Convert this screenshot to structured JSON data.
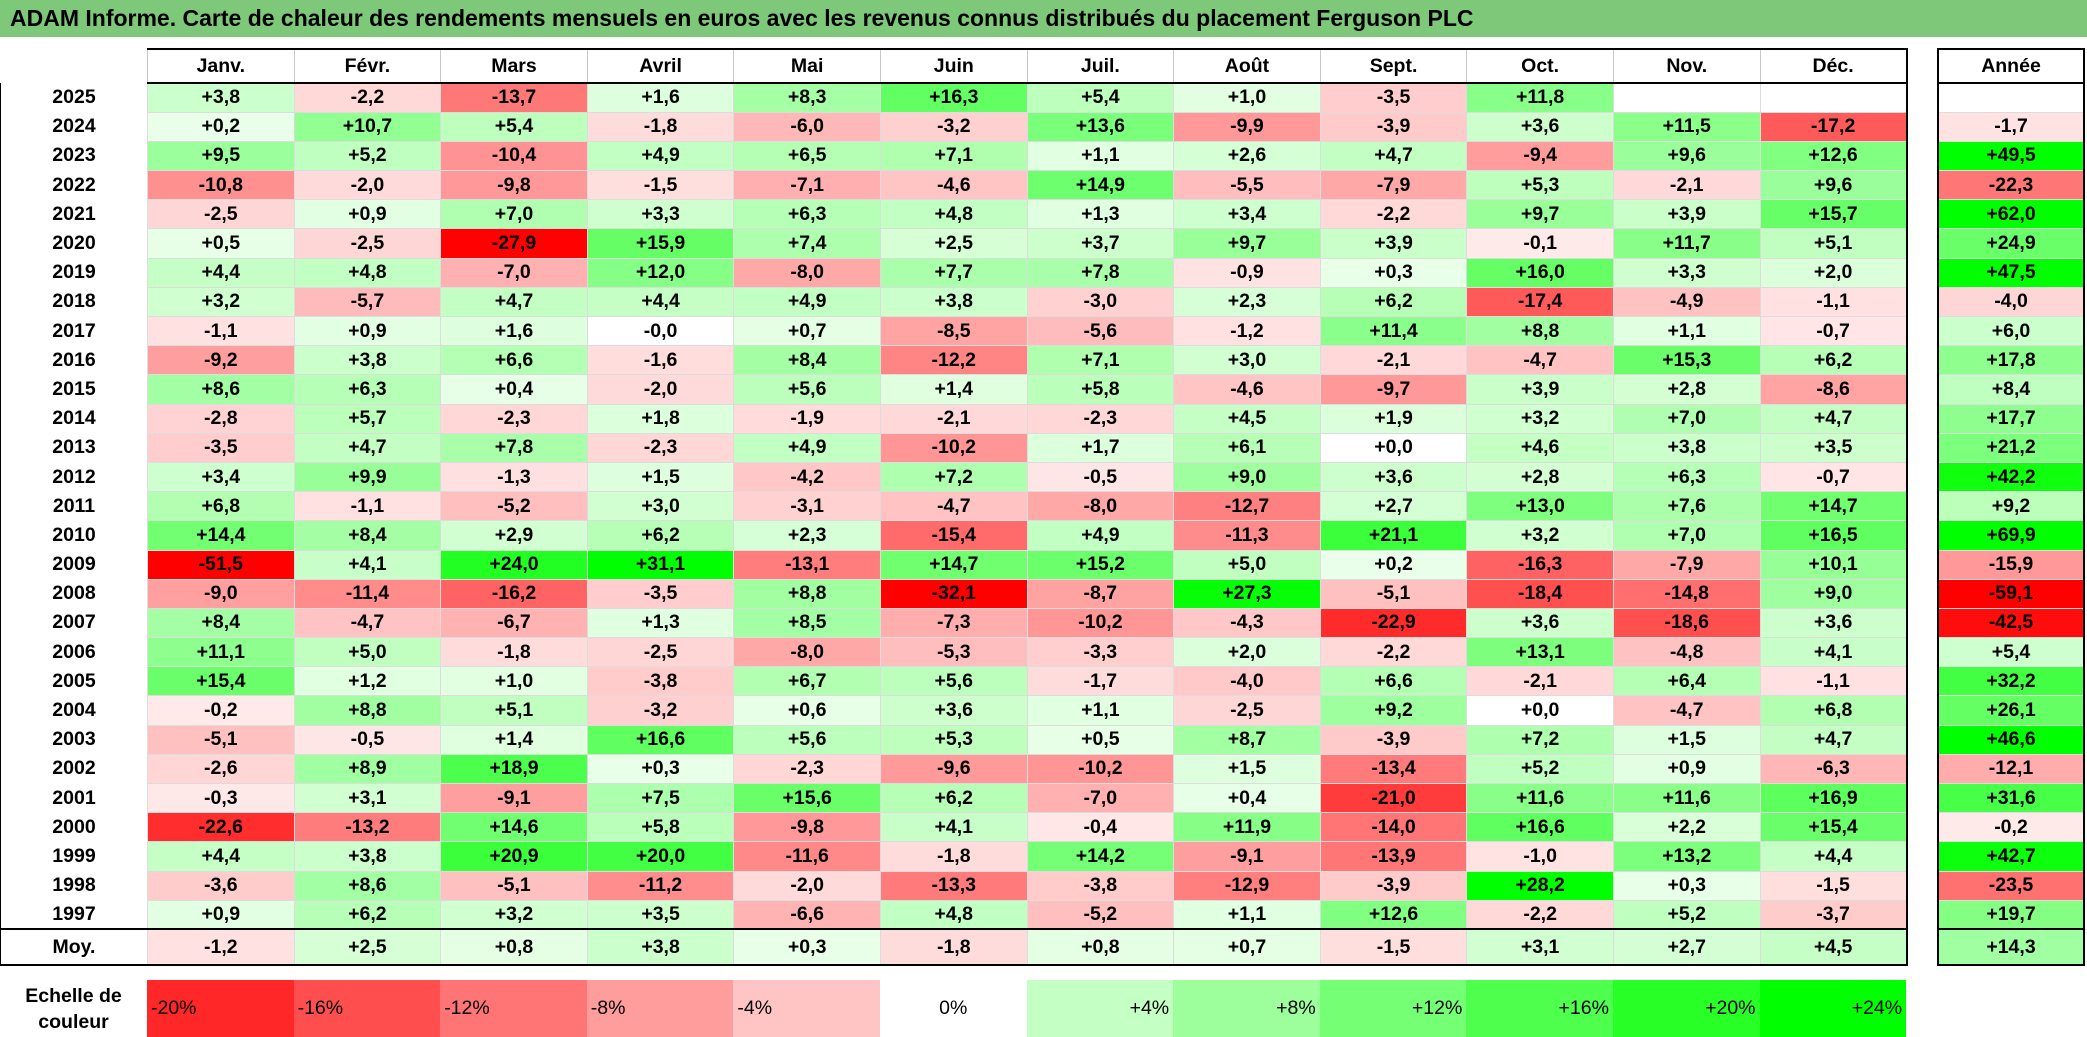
{
  "title": "ADAM Informe. Carte de chaleur des rendements mensuels en euros avec les revenus connus distribués du placement Ferguson PLC",
  "chart_data": {
    "type": "heatmap",
    "months": [
      "Janv.",
      "Févr.",
      "Mars",
      "Avril",
      "Mai",
      "Juin",
      "Juil.",
      "Août",
      "Sept.",
      "Oct.",
      "Nov.",
      "Déc."
    ],
    "annual_header": "Année",
    "rows": [
      {
        "year": "2025",
        "values": [
          "+3,8",
          "-2,2",
          "-13,7",
          "+1,6",
          "+8,3",
          "+16,3",
          "+5,4",
          "+1,0",
          "-3,5",
          "+11,8",
          "",
          ""
        ],
        "annual": ""
      },
      {
        "year": "2024",
        "values": [
          "+0,2",
          "+10,7",
          "+5,4",
          "-1,8",
          "-6,0",
          "-3,2",
          "+13,6",
          "-9,9",
          "-3,9",
          "+3,6",
          "+11,5",
          "-17,2"
        ],
        "annual": "-1,7"
      },
      {
        "year": "2023",
        "values": [
          "+9,5",
          "+5,2",
          "-10,4",
          "+4,9",
          "+6,5",
          "+7,1",
          "+1,1",
          "+2,6",
          "+4,7",
          "-9,4",
          "+9,6",
          "+12,6"
        ],
        "annual": "+49,5"
      },
      {
        "year": "2022",
        "values": [
          "-10,8",
          "-2,0",
          "-9,8",
          "-1,5",
          "-7,1",
          "-4,6",
          "+14,9",
          "-5,5",
          "-7,9",
          "+5,3",
          "-2,1",
          "+9,6"
        ],
        "annual": "-22,3"
      },
      {
        "year": "2021",
        "values": [
          "-2,5",
          "+0,9",
          "+7,0",
          "+3,3",
          "+6,3",
          "+4,8",
          "+1,3",
          "+3,4",
          "-2,2",
          "+9,7",
          "+3,9",
          "+15,7"
        ],
        "annual": "+62,0"
      },
      {
        "year": "2020",
        "values": [
          "+0,5",
          "-2,5",
          "-27,9",
          "+15,9",
          "+7,4",
          "+2,5",
          "+3,7",
          "+9,7",
          "+3,9",
          "-0,1",
          "+11,7",
          "+5,1"
        ],
        "annual": "+24,9"
      },
      {
        "year": "2019",
        "values": [
          "+4,4",
          "+4,8",
          "-7,0",
          "+12,0",
          "-8,0",
          "+7,7",
          "+7,8",
          "-0,9",
          "+0,3",
          "+16,0",
          "+3,3",
          "+2,0"
        ],
        "annual": "+47,5"
      },
      {
        "year": "2018",
        "values": [
          "+3,2",
          "-5,7",
          "+4,7",
          "+4,4",
          "+4,9",
          "+3,8",
          "-3,0",
          "+2,3",
          "+6,2",
          "-17,4",
          "-4,9",
          "-1,1"
        ],
        "annual": "-4,0"
      },
      {
        "year": "2017",
        "values": [
          "-1,1",
          "+0,9",
          "+1,6",
          "-0,0",
          "+0,7",
          "-8,5",
          "-5,6",
          "-1,2",
          "+11,4",
          "+8,8",
          "+1,1",
          "-0,7"
        ],
        "annual": "+6,0"
      },
      {
        "year": "2016",
        "values": [
          "-9,2",
          "+3,8",
          "+6,6",
          "-1,6",
          "+8,4",
          "-12,2",
          "+7,1",
          "+3,0",
          "-2,1",
          "-4,7",
          "+15,3",
          "+6,2"
        ],
        "annual": "+17,8"
      },
      {
        "year": "2015",
        "values": [
          "+8,6",
          "+6,3",
          "+0,4",
          "-2,0",
          "+5,6",
          "+1,4",
          "+5,8",
          "-4,6",
          "-9,7",
          "+3,9",
          "+2,8",
          "-8,6"
        ],
        "annual": "+8,4"
      },
      {
        "year": "2014",
        "values": [
          "-2,8",
          "+5,7",
          "-2,3",
          "+1,8",
          "-1,9",
          "-2,1",
          "-2,3",
          "+4,5",
          "+1,9",
          "+3,2",
          "+7,0",
          "+4,7"
        ],
        "annual": "+17,7"
      },
      {
        "year": "2013",
        "values": [
          "-3,5",
          "+4,7",
          "+7,8",
          "-2,3",
          "+4,9",
          "-10,2",
          "+1,7",
          "+6,1",
          "+0,0",
          "+4,6",
          "+3,8",
          "+3,5"
        ],
        "annual": "+21,2"
      },
      {
        "year": "2012",
        "values": [
          "+3,4",
          "+9,9",
          "-1,3",
          "+1,5",
          "-4,2",
          "+7,2",
          "-0,5",
          "+9,0",
          "+3,6",
          "+2,8",
          "+6,3",
          "-0,7"
        ],
        "annual": "+42,2"
      },
      {
        "year": "2011",
        "values": [
          "+6,8",
          "-1,1",
          "-5,2",
          "+3,0",
          "-3,1",
          "-4,7",
          "-8,0",
          "-12,7",
          "+2,7",
          "+13,0",
          "+7,6",
          "+14,7"
        ],
        "annual": "+9,2"
      },
      {
        "year": "2010",
        "values": [
          "+14,4",
          "+8,4",
          "+2,9",
          "+6,2",
          "+2,3",
          "-15,4",
          "+4,9",
          "-11,3",
          "+21,1",
          "+3,2",
          "+7,0",
          "+16,5"
        ],
        "annual": "+69,9"
      },
      {
        "year": "2009",
        "values": [
          "-51,5",
          "+4,1",
          "+24,0",
          "+31,1",
          "-13,1",
          "+14,7",
          "+15,2",
          "+5,0",
          "+0,2",
          "-16,3",
          "-7,9",
          "+10,1"
        ],
        "annual": "-15,9"
      },
      {
        "year": "2008",
        "values": [
          "-9,0",
          "-11,4",
          "-16,2",
          "-3,5",
          "+8,8",
          "-32,1",
          "-8,7",
          "+27,3",
          "-5,1",
          "-18,4",
          "-14,8",
          "+9,0"
        ],
        "annual": "-59,1"
      },
      {
        "year": "2007",
        "values": [
          "+8,4",
          "-4,7",
          "-6,7",
          "+1,3",
          "+8,5",
          "-7,3",
          "-10,2",
          "-4,3",
          "-22,9",
          "+3,6",
          "-18,6",
          "+3,6"
        ],
        "annual": "-42,5"
      },
      {
        "year": "2006",
        "values": [
          "+11,1",
          "+5,0",
          "-1,8",
          "-2,5",
          "-8,0",
          "-5,3",
          "-3,3",
          "+2,0",
          "-2,2",
          "+13,1",
          "-4,8",
          "+4,1"
        ],
        "annual": "+5,4"
      },
      {
        "year": "2005",
        "values": [
          "+15,4",
          "+1,2",
          "+1,0",
          "-3,8",
          "+6,7",
          "+5,6",
          "-1,7",
          "-4,0",
          "+6,6",
          "-2,1",
          "+6,4",
          "-1,1"
        ],
        "annual": "+32,2"
      },
      {
        "year": "2004",
        "values": [
          "-0,2",
          "+8,8",
          "+5,1",
          "-3,2",
          "+0,6",
          "+3,6",
          "+1,1",
          "-2,5",
          "+9,2",
          "+0,0",
          "-4,7",
          "+6,8"
        ],
        "annual": "+26,1"
      },
      {
        "year": "2003",
        "values": [
          "-5,1",
          "-0,5",
          "+1,4",
          "+16,6",
          "+5,6",
          "+5,3",
          "+0,5",
          "+8,7",
          "-3,9",
          "+7,2",
          "+1,5",
          "+4,7"
        ],
        "annual": "+46,6"
      },
      {
        "year": "2002",
        "values": [
          "-2,6",
          "+8,9",
          "+18,9",
          "+0,3",
          "-2,3",
          "-9,6",
          "-10,2",
          "+1,5",
          "-13,4",
          "+5,2",
          "+0,9",
          "-6,3"
        ],
        "annual": "-12,1"
      },
      {
        "year": "2001",
        "values": [
          "-0,3",
          "+3,1",
          "-9,1",
          "+7,5",
          "+15,6",
          "+6,2",
          "-7,0",
          "+0,4",
          "-21,0",
          "+11,6",
          "+11,6",
          "+16,9"
        ],
        "annual": "+31,6"
      },
      {
        "year": "2000",
        "values": [
          "-22,6",
          "-13,2",
          "+14,6",
          "+5,8",
          "-9,8",
          "+4,1",
          "-0,4",
          "+11,9",
          "-14,0",
          "+16,6",
          "+2,2",
          "+15,4"
        ],
        "annual": "-0,2"
      },
      {
        "year": "1999",
        "values": [
          "+4,4",
          "+3,8",
          "+20,9",
          "+20,0",
          "-11,6",
          "-1,8",
          "+14,2",
          "-9,1",
          "-13,9",
          "-1,0",
          "+13,2",
          "+4,4"
        ],
        "annual": "+42,7"
      },
      {
        "year": "1998",
        "values": [
          "-3,6",
          "+8,6",
          "-5,1",
          "-11,2",
          "-2,0",
          "-13,3",
          "-3,8",
          "-12,9",
          "-3,9",
          "+28,2",
          "+0,3",
          "-1,5"
        ],
        "annual": "-23,5"
      },
      {
        "year": "1997",
        "values": [
          "+0,9",
          "+6,2",
          "+3,2",
          "+3,5",
          "-6,6",
          "+4,8",
          "-5,2",
          "+1,1",
          "+12,6",
          "-2,2",
          "+5,2",
          "-3,7"
        ],
        "annual": "+19,7"
      }
    ],
    "average": {
      "label": "Moy.",
      "values": [
        "-1,2",
        "+2,5",
        "+0,8",
        "+3,8",
        "+0,3",
        "-1,8",
        "+0,8",
        "+0,7",
        "-1,5",
        "+3,1",
        "+2,7",
        "+4,5"
      ],
      "annual": "+14,3"
    },
    "color_scale": {
      "label": "Echelle de couleur",
      "stops": [
        "-20%",
        "-16%",
        "-12%",
        "-8%",
        "-4%",
        "0%",
        "+4%",
        "+8%",
        "+12%",
        "+16%",
        "+20%",
        "+24%"
      ],
      "colors": {
        "negative": "#ff0000",
        "neutral": "#ffffff",
        "positive": "#00ff00"
      }
    }
  }
}
